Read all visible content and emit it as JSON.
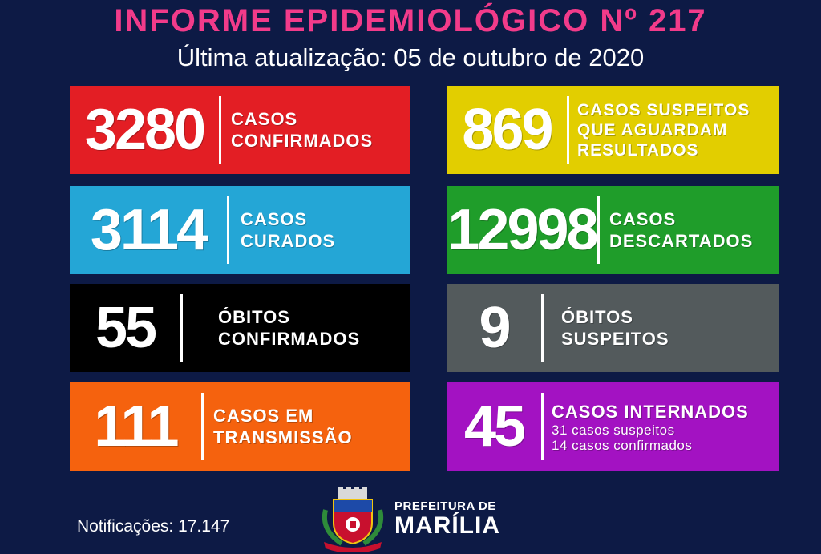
{
  "header": {
    "title": "INFORME EPIDEMIOLÓGICO Nº 217",
    "subtitle": "Última atualização: 05 de outubro de 2020"
  },
  "cards": [
    {
      "value": "3280",
      "label_lines": [
        "CASOS",
        "CONFIRMADOS"
      ],
      "color": "#e31e24"
    },
    {
      "value": "869",
      "label_lines": [
        "CASOS SUSPEITOS",
        "QUE AGUARDAM",
        "RESULTADOS"
      ],
      "color": "#e2ce00"
    },
    {
      "value": "3114",
      "label_lines": [
        "CASOS",
        "CURADOS"
      ],
      "color": "#24a6d6"
    },
    {
      "value": "12998",
      "label_lines": [
        "CASOS",
        "DESCARTADOS"
      ],
      "color": "#1f9d2a"
    },
    {
      "value": "55",
      "label_lines": [
        "ÓBITOS",
        "CONFIRMADOS"
      ],
      "color": "#000000"
    },
    {
      "value": "9",
      "label_lines": [
        "ÓBITOS",
        "SUSPEITOS"
      ],
      "color": "#535a5c"
    },
    {
      "value": "111",
      "label_lines": [
        "CASOS EM",
        "TRANSMISSÃO"
      ],
      "color": "#f5620e"
    },
    {
      "value": "45",
      "label_lines": [
        "CASOS INTERNADOS"
      ],
      "sub_lines": [
        "31 casos suspeitos",
        "14 casos confirmados"
      ],
      "color": "#a312c2"
    }
  ],
  "footer": {
    "notifications": "Notificações: 17.147",
    "logo_line1": "PREFEITURA DE",
    "logo_line2": "MARÍLIA"
  },
  "colors": {
    "background": "#0d1a45",
    "title": "#f23b8a"
  }
}
